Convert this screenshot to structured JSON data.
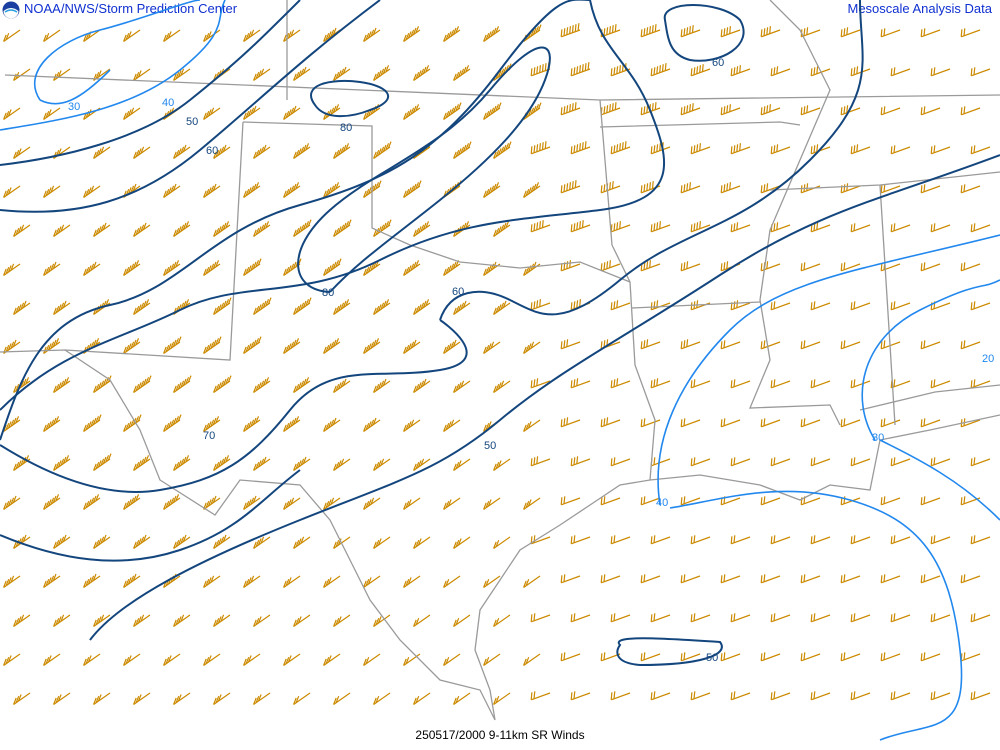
{
  "header": {
    "title_left": "NOAA/NWS/Storm Prediction Center",
    "title_right": "Mesoscale Analysis Data",
    "logo_icon": "noaa-logo"
  },
  "footer": {
    "caption": "250517/2000 9-11km SR Winds"
  },
  "colors": {
    "barb": "#cc8a00",
    "contour_strong": "#14467e",
    "contour_weak": "#2288ee",
    "borders": "#9a9a9a",
    "title": "#1030d0"
  },
  "contour_labels": {
    "c30a": "30",
    "c40a": "40",
    "c50a": "50",
    "c60a": "60",
    "c80a": "80",
    "c80b": "80",
    "c60b": "60",
    "c60c": "60",
    "c70": "70",
    "c50b": "50",
    "c50c": "50",
    "c40b": "40",
    "c30b": "30",
    "c20": "20"
  }
}
